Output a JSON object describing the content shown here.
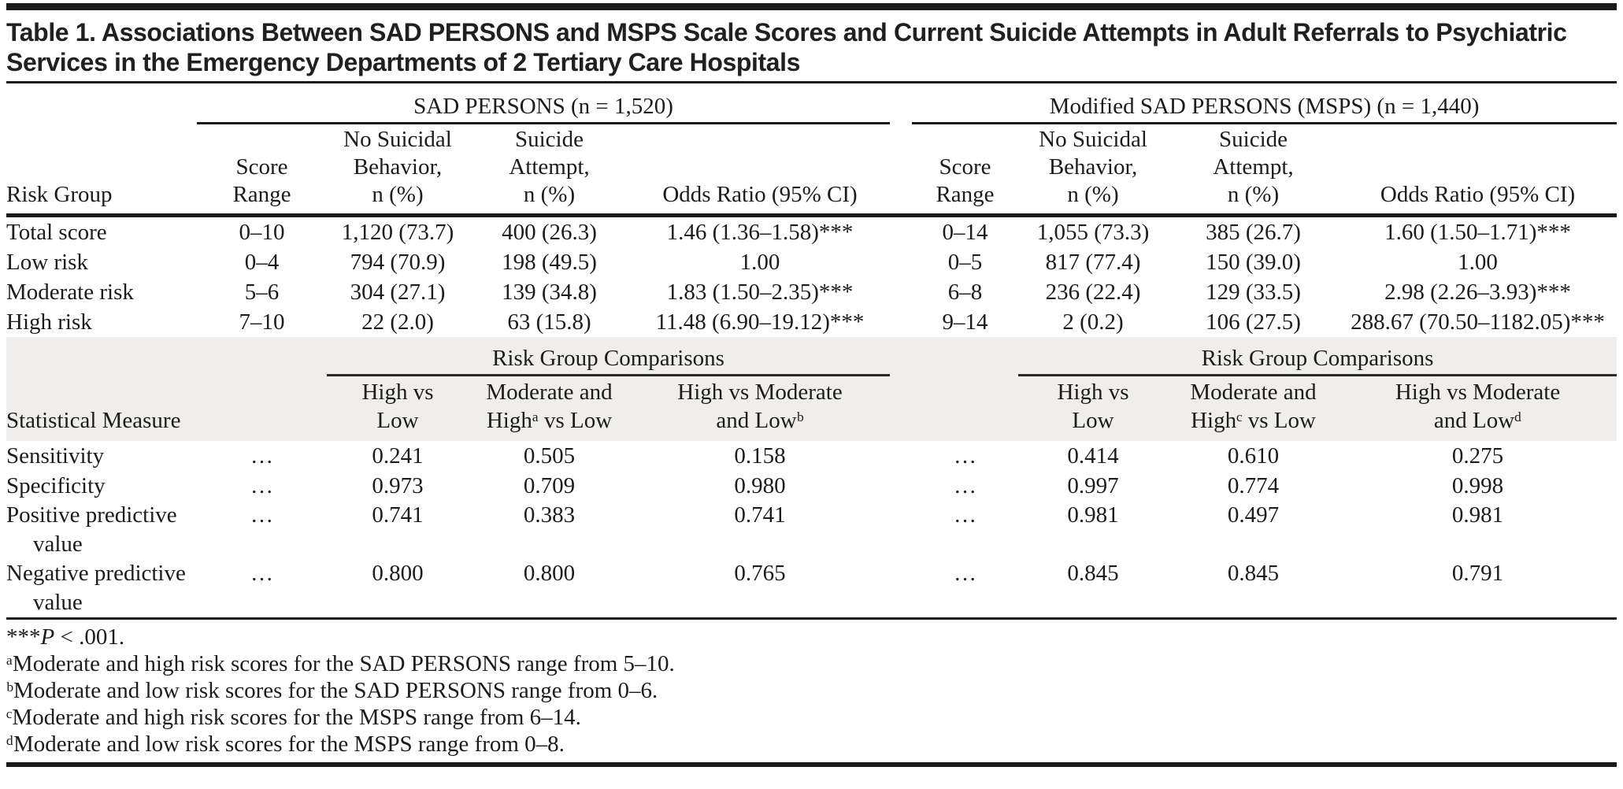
{
  "title": "Table 1. Associations Between SAD PERSONS and MSPS Scale Scores and Current Suicide Attempts in Adult Referrals to Psychiatric Services in the Emergency Departments of 2 Tertiary Care Hospitals",
  "table": {
    "group_headers": {
      "sad": "SAD PERSONS (n = 1,520)",
      "msps": "Modified SAD PERSONS (MSPS) (n = 1,440)"
    },
    "columns": {
      "risk_group": "Risk Group",
      "score_range": "Score\nRange",
      "no_suicidal": "No Suicidal\nBehavior,\nn (%)",
      "suicide_attempt": "Suicide\nAttempt,\nn (%)",
      "odds_ratio": "Odds Ratio (95% CI)"
    },
    "risk_rows": [
      {
        "label": "Total score",
        "sad": [
          "0–10",
          "1,120 (73.7)",
          "400 (26.3)",
          "1.46 (1.36–1.58)***"
        ],
        "msps": [
          "0–14",
          "1,055 (73.3)",
          "385 (26.7)",
          "1.60 (1.50–1.71)***"
        ]
      },
      {
        "label": "Low risk",
        "sad": [
          "0–4",
          "794 (70.9)",
          "198 (49.5)",
          "1.00"
        ],
        "msps": [
          "0–5",
          "817 (77.4)",
          "150 (39.0)",
          "1.00"
        ]
      },
      {
        "label": "Moderate risk",
        "sad": [
          "5–6",
          "304 (27.1)",
          "139 (34.8)",
          "1.83 (1.50–2.35)***"
        ],
        "msps": [
          "6–8",
          "236 (22.4)",
          "129 (33.5)",
          "2.98 (2.26–3.93)***"
        ]
      },
      {
        "label": "High risk",
        "sad": [
          "7–10",
          "22 (2.0)",
          "63 (15.8)",
          "11.48 (6.90–19.12)***"
        ],
        "msps": [
          "9–14",
          "2 (0.2)",
          "106 (27.5)",
          "288.67 (70.50–1182.05)***"
        ]
      }
    ],
    "comparisons": {
      "header": "Risk Group Comparisons",
      "stat_label": "Statistical Measure",
      "sad_columns": [
        "High vs\nLow",
        "Moderate and\nHighᵃ vs Low",
        "High vs Moderate\nand Lowᵇ"
      ],
      "msps_columns": [
        "High vs\nLow",
        "Moderate and\nHighᶜ vs Low",
        "High vs Moderate\nand Lowᵈ"
      ]
    },
    "ellipsis": "…",
    "stat_rows": [
      {
        "label": "Sensitivity",
        "sad": [
          "0.241",
          "0.505",
          "0.158"
        ],
        "msps": [
          "0.414",
          "0.610",
          "0.275"
        ]
      },
      {
        "label": "Specificity",
        "sad": [
          "0.973",
          "0.709",
          "0.980"
        ],
        "msps": [
          "0.997",
          "0.774",
          "0.998"
        ]
      },
      {
        "label": "Positive predictive value",
        "sad": [
          "0.741",
          "0.383",
          "0.741"
        ],
        "msps": [
          "0.981",
          "0.497",
          "0.981"
        ]
      },
      {
        "label": "Negative predictive value",
        "sad": [
          "0.800",
          "0.800",
          "0.765"
        ],
        "msps": [
          "0.845",
          "0.845",
          "0.791"
        ]
      }
    ]
  },
  "footnotes": {
    "significance": {
      "stars": "***",
      "p": "P",
      "rest": " < .001."
    },
    "notes": [
      "ᵃModerate and high risk scores for the SAD PERSONS range from 5–10.",
      "ᵇModerate and low risk scores for the SAD PERSONS range from 0–6.",
      "ᶜModerate and high risk scores for the MSPS range from 6–14.",
      "ᵈModerate and low risk scores for the MSPS range from 0–8."
    ]
  }
}
